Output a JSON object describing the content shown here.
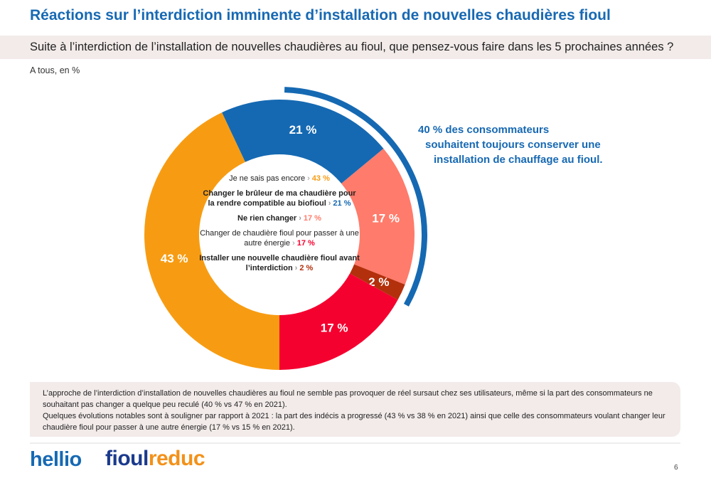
{
  "title": "Réactions sur l’interdiction imminente d’installation de nouvelles chaudières fioul",
  "subtitle": "Suite à l’interdiction de l’installation de nouvelles chaudières au fioul, que pensez-vous faire dans les 5 prochaines années ?",
  "base": "A tous, en %",
  "chart_data": {
    "type": "pie",
    "subtype": "donut",
    "title": "Suite à l’interdiction de l’installation de nouvelles chaudières au fioul, que pensez-vous faire dans les 5 prochaines années ?",
    "unit": "%",
    "slices": [
      {
        "label": "Changer le brûleur de ma chaudière pour la rendre compatible au biofioul",
        "value": 21,
        "display": "21 %",
        "color": "#1569b2",
        "bold": true
      },
      {
        "label": "Ne rien changer",
        "value": 17,
        "display": "17 %",
        "color": "#ff7b6b",
        "bold": true
      },
      {
        "label": "Installer une nouvelle chaudière fioul avant l’interdiction",
        "value": 2,
        "display": "2 %",
        "color": "#b3300c",
        "bold": true
      },
      {
        "label": "Changer de chaudière fioul pour passer à une autre énergie",
        "value": 17,
        "display": "17 %",
        "color": "#f5012f",
        "bold": false
      },
      {
        "label": "Je ne sais pas encore",
        "value": 43,
        "display": "43 %",
        "color": "#f79c12",
        "bold": false
      }
    ],
    "highlight": {
      "value": 40,
      "text": "40 % des consommateurs souhaitent toujours conserver une installation de chauffage au fioul.",
      "color": "#1569b2"
    }
  },
  "legend_order": [
    4,
    0,
    1,
    3,
    2
  ],
  "callout_lines": [
    "40 % des consommateurs",
    "souhaitent toujours conserver une",
    "installation de chauffage au fioul."
  ],
  "note": {
    "p1": "L’approche de l’interdiction d’installation de nouvelles chaudières au fioul ne semble pas provoquer de réel sursaut chez ses utilisateurs, même si la part des consommateurs ne souhaitant pas changer a quelque peu reculé (40 % vs 47 % en 2021).",
    "p2": "Quelques évolutions notables sont à souligner par rapport à 2021 : la part des indécis a progressé (43 % vs 38 % en 2021) ainsi que celle des consommateurs voulant changer leur chaudière fioul pour passer à une autre énergie (17 % vs 15 % en 2021)."
  },
  "logos": {
    "hellio": "hellio",
    "fioul_a": "fioul",
    "fioul_b": "reduc"
  },
  "page_number": "6"
}
